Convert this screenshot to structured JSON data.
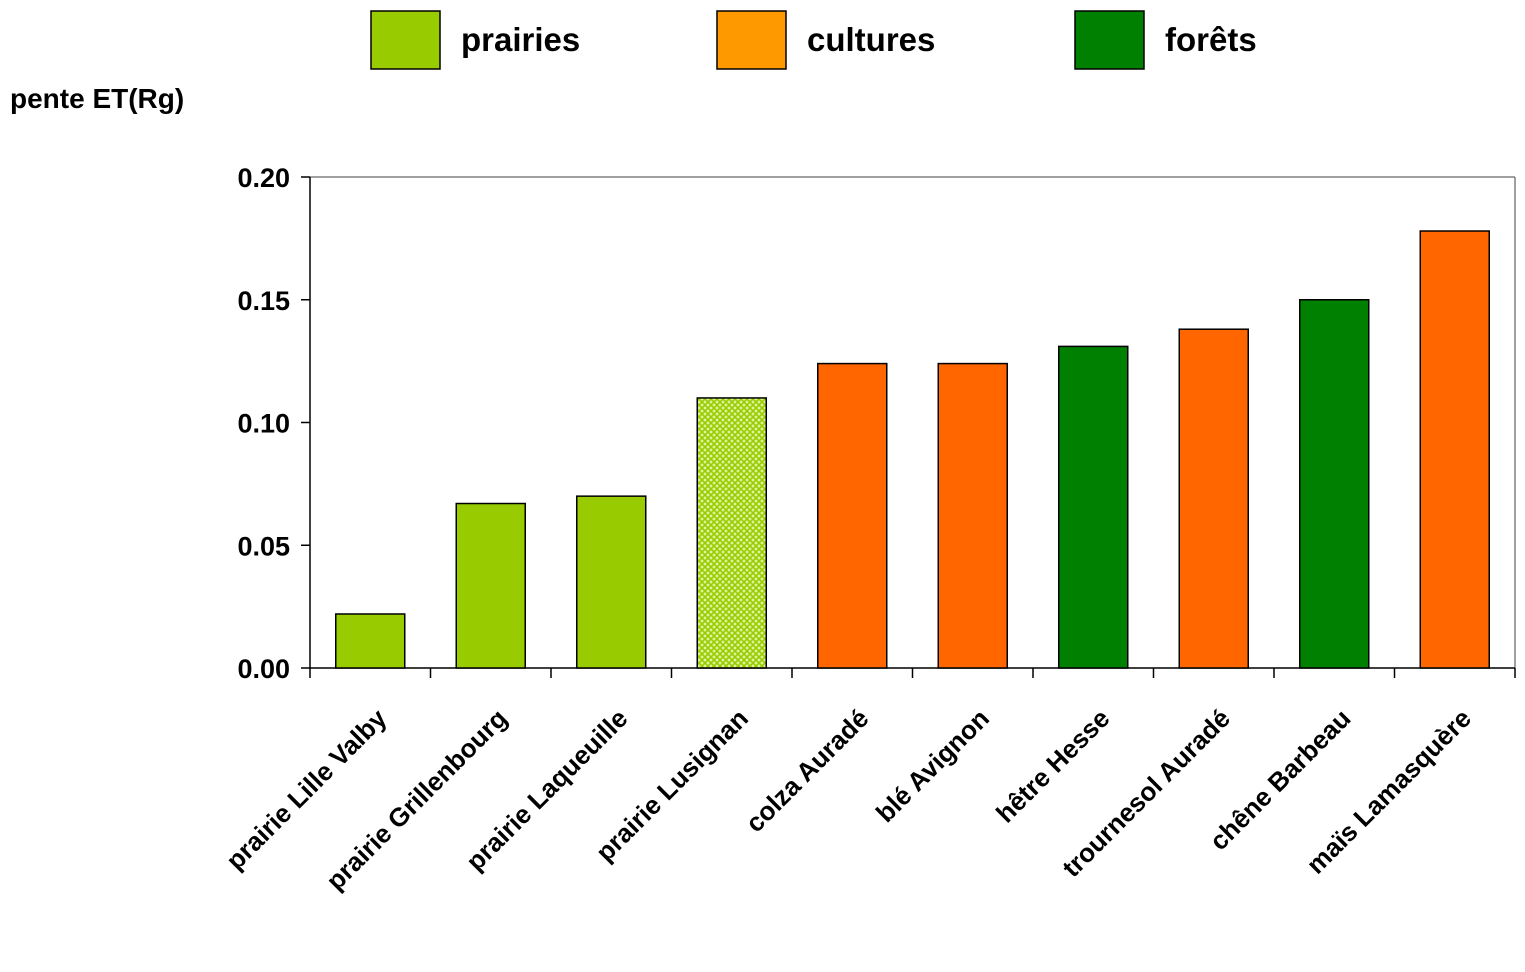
{
  "chart_data": {
    "type": "bar",
    "title": "",
    "xlabel": "",
    "ylabel": "pente ET(Rg)",
    "ylim": [
      0,
      0.2
    ],
    "yticks": [
      "0.00",
      "0.05",
      "0.10",
      "0.15",
      "0.20"
    ],
    "ytick_values": [
      0,
      0.05,
      0.1,
      0.15,
      0.2
    ],
    "grid": false,
    "legend_position": "top",
    "legend": [
      {
        "label": "prairies",
        "color": "#99cc00"
      },
      {
        "label": "cultures",
        "color": "#ff9900"
      },
      {
        "label": "forêts",
        "color": "#008000"
      }
    ],
    "categories": [
      "prairie Lille Valby",
      "prairie Grillenbourg",
      "prairie Laqueuille",
      "prairie Lusignan",
      "colza Auradé",
      "blé Avignon",
      "hêtre Hesse",
      "trournesol Auradé",
      "chêne Barbeau",
      "maïs Lamasquère"
    ],
    "values": [
      0.022,
      0.067,
      0.07,
      0.11,
      0.124,
      0.124,
      0.131,
      0.138,
      0.15,
      0.178
    ],
    "bar_colors": [
      "#99cc00",
      "#99cc00",
      "#99cc00",
      "#99cc00",
      "#ff6600",
      "#ff6600",
      "#008000",
      "#ff6600",
      "#008000",
      "#ff6600"
    ],
    "bar_patterns": [
      "solid",
      "solid",
      "solid",
      "crosshatch",
      "solid",
      "solid",
      "solid",
      "solid",
      "solid",
      "solid"
    ]
  }
}
